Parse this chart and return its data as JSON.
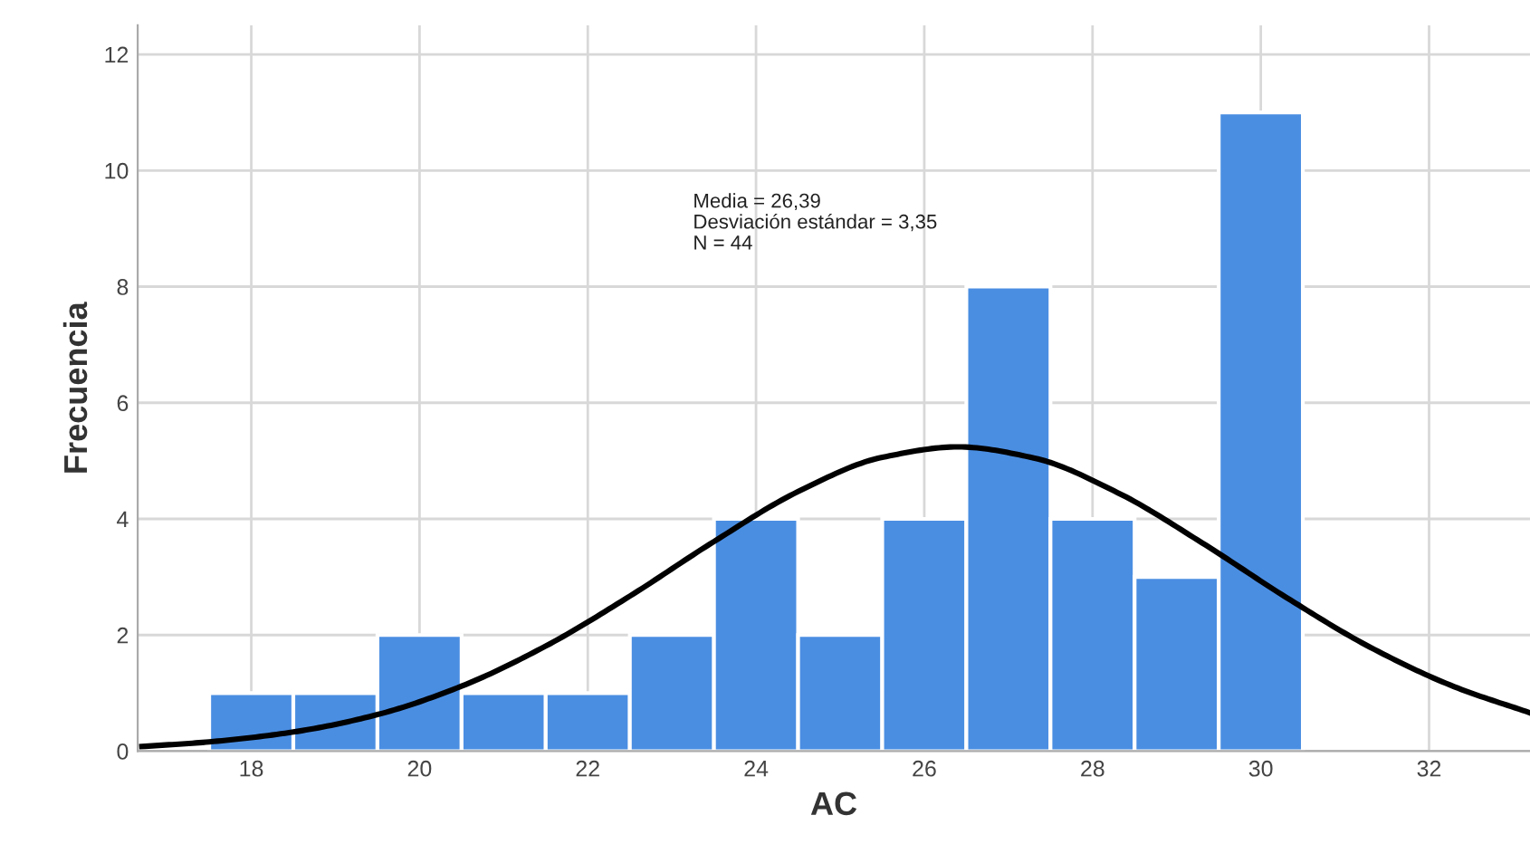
{
  "chart_data": {
    "type": "histogram",
    "xlabel": "AC",
    "ylabel": "Frecuencia",
    "bins": [
      17.5,
      18.5,
      19.5,
      20.5,
      21.5,
      22.5,
      23.5,
      24.5,
      25.5,
      26.5,
      27.5,
      28.5,
      29.5,
      30.5
    ],
    "values": [
      1,
      1,
      2,
      1,
      1,
      2,
      4,
      2,
      4,
      8,
      4,
      3,
      11
    ],
    "color": "#4a8ee2",
    "series": [
      {
        "type": "line",
        "color": "#000000",
        "x": [
          16.7,
          17.5,
          18.5,
          19.5,
          20.5,
          21.5,
          22.5,
          23.5,
          24.5,
          25.5,
          26.4,
          27.3,
          28.3,
          29.3,
          30.3,
          31.3,
          32.3,
          33.2
        ],
        "values": [
          0.08,
          0.16,
          0.33,
          0.63,
          1.12,
          1.81,
          2.67,
          3.61,
          4.47,
          5.06,
          5.24,
          5.05,
          4.45,
          3.59,
          2.65,
          1.79,
          1.11,
          0.66
        ]
      }
    ],
    "annotations": [
      "Media = 26,39",
      "Desviación estándar = 3,35",
      "N = 44"
    ],
    "xlim": [
      16.65,
      33.2
    ],
    "ylim": [
      0,
      12.5
    ],
    "xticks": [
      18,
      20,
      22,
      24,
      26,
      28,
      30,
      32
    ],
    "yticks": [
      0,
      2,
      4,
      6,
      8,
      10,
      12
    ],
    "grid": true,
    "legend": false
  }
}
